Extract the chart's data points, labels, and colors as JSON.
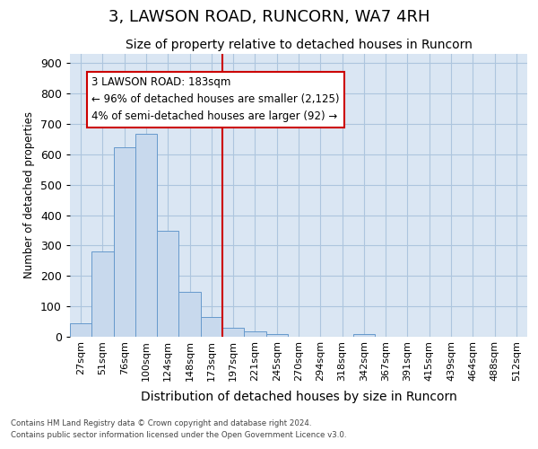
{
  "title": "3, LAWSON ROAD, RUNCORN, WA7 4RH",
  "subtitle": "Size of property relative to detached houses in Runcorn",
  "xlabel": "Distribution of detached houses by size in Runcorn",
  "ylabel": "Number of detached properties",
  "footer_line1": "Contains HM Land Registry data © Crown copyright and database right 2024.",
  "footer_line2": "Contains public sector information licensed under the Open Government Licence v3.0.",
  "bin_labels": [
    "27sqm",
    "51sqm",
    "76sqm",
    "100sqm",
    "124sqm",
    "148sqm",
    "173sqm",
    "197sqm",
    "221sqm",
    "245sqm",
    "270sqm",
    "294sqm",
    "318sqm",
    "342sqm",
    "367sqm",
    "391sqm",
    "415sqm",
    "439sqm",
    "464sqm",
    "488sqm",
    "512sqm"
  ],
  "bar_values": [
    43,
    280,
    622,
    668,
    347,
    148,
    65,
    30,
    18,
    10,
    0,
    0,
    0,
    10,
    0,
    0,
    0,
    0,
    0,
    0,
    0
  ],
  "bar_color": "#c8d9ed",
  "bar_edge_color": "#6699cc",
  "grid_color": "#adc5de",
  "bg_color": "#dae6f3",
  "annotation_line1": "3 LAWSON ROAD: 183sqm",
  "annotation_line2": "← 96% of detached houses are smaller (2,125)",
  "annotation_line3": "4% of semi-detached houses are larger (92) →",
  "annotation_box_color": "#ffffff",
  "annotation_border_color": "#cc0000",
  "red_line_color": "#cc0000",
  "ylim": [
    0,
    930
  ],
  "yticks": [
    0,
    100,
    200,
    300,
    400,
    500,
    600,
    700,
    800,
    900
  ],
  "title_fontsize": 13,
  "subtitle_fontsize": 10,
  "xlabel_fontsize": 10,
  "ylabel_fontsize": 8.5
}
